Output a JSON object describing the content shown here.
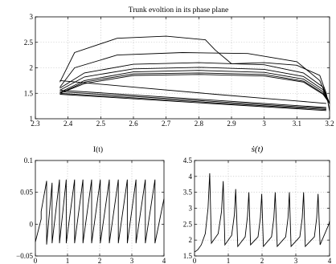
{
  "chart_data": [
    {
      "type": "line",
      "title": "Trunk evoltion in its phase plane",
      "xlabel": "",
      "ylabel": "",
      "xlim": [
        2.3,
        3.2
      ],
      "ylim": [
        1,
        3
      ],
      "xticks": [
        "2.3",
        "2.4",
        "2.5",
        "2.6",
        "2.7",
        "2.8",
        "2.9",
        "3",
        "3.1",
        "3.2"
      ],
      "yticks": [
        "1",
        "1.5",
        "2",
        "2.5",
        "3"
      ],
      "grid": true,
      "series": [
        {
          "x": [
            2.375,
            2.42,
            2.55,
            2.7,
            2.82,
            2.85,
            2.9,
            3.0,
            3.1,
            3.17,
            3.19,
            3.2
          ],
          "y": [
            1.72,
            2.3,
            2.58,
            2.62,
            2.55,
            2.35,
            2.08,
            2.1,
            2.05,
            1.85,
            1.5,
            1.15
          ]
        },
        {
          "x": [
            2.375,
            2.42,
            2.55,
            2.75,
            2.95,
            3.1,
            3.17,
            3.2
          ],
          "y": [
            1.62,
            2.0,
            2.25,
            2.3,
            2.28,
            2.12,
            1.75,
            1.3
          ]
        },
        {
          "x": [
            2.375,
            2.45,
            2.6,
            2.8,
            3.0,
            3.12,
            3.18,
            3.2
          ],
          "y": [
            1.6,
            1.9,
            2.07,
            2.1,
            2.06,
            1.9,
            1.62,
            1.3
          ]
        },
        {
          "x": [
            2.375,
            2.45,
            2.6,
            2.8,
            3.0,
            3.12,
            3.18,
            3.2
          ],
          "y": [
            1.56,
            1.82,
            1.98,
            2.01,
            1.97,
            1.83,
            1.57,
            1.3
          ]
        },
        {
          "x": [
            2.375,
            2.45,
            2.6,
            2.8,
            3.0,
            3.12,
            3.18,
            3.2
          ],
          "y": [
            1.52,
            1.75,
            1.92,
            1.95,
            1.91,
            1.78,
            1.53,
            1.3
          ]
        },
        {
          "x": [
            2.375,
            2.45,
            2.6,
            2.8,
            3.0,
            3.12,
            3.18,
            3.2
          ],
          "y": [
            1.5,
            1.72,
            1.88,
            1.9,
            1.87,
            1.74,
            1.5,
            1.3
          ]
        },
        {
          "x": [
            2.375,
            2.45,
            2.6,
            2.8,
            3.0,
            3.12,
            3.18,
            3.2
          ],
          "y": [
            1.5,
            1.69,
            1.85,
            1.87,
            1.84,
            1.72,
            1.48,
            1.3
          ]
        },
        {
          "x": [
            2.375,
            2.6,
            2.85,
            3.0,
            3.1,
            3.19
          ],
          "y": [
            1.75,
            1.62,
            1.48,
            1.4,
            1.35,
            1.3
          ]
        },
        {
          "x": [
            2.375,
            3.19
          ],
          "y": [
            1.56,
            1.22
          ]
        },
        {
          "x": [
            2.375,
            3.19
          ],
          "y": [
            1.53,
            1.2
          ]
        },
        {
          "x": [
            2.375,
            3.19
          ],
          "y": [
            1.5,
            1.18
          ]
        },
        {
          "x": [
            2.375,
            3.19
          ],
          "y": [
            1.48,
            1.16
          ]
        }
      ]
    },
    {
      "type": "line",
      "title": "I(t)",
      "xlabel": "",
      "ylabel": "",
      "xlim": [
        0,
        4
      ],
      "ylim": [
        -0.05,
        0.1
      ],
      "xticks": [
        "0",
        "1",
        "2",
        "3",
        "4"
      ],
      "yticks": [
        "−0.05",
        "0",
        "0.05",
        "0.1"
      ],
      "grid": true,
      "series": [
        {
          "x": [
            0,
            0.18,
            0.18,
            0.35,
            0.35,
            0.52,
            0.52,
            0.75,
            0.75,
            0.96,
            0.96,
            1.22,
            1.22,
            1.48,
            1.48,
            1.75,
            1.75,
            2.02,
            2.02,
            2.3,
            2.3,
            2.58,
            2.58,
            2.86,
            2.86,
            3.13,
            3.13,
            3.42,
            3.42,
            3.72,
            3.72,
            4.0
          ],
          "y": [
            -0.028,
            0.008,
            0.02,
            0.068,
            -0.032,
            0.065,
            -0.03,
            0.07,
            -0.03,
            0.07,
            -0.03,
            0.07,
            -0.03,
            0.07,
            -0.03,
            0.07,
            -0.03,
            0.07,
            -0.03,
            0.07,
            -0.03,
            0.07,
            -0.03,
            0.07,
            -0.03,
            0.07,
            -0.03,
            0.07,
            -0.03,
            0.07,
            -0.03,
            0.04
          ]
        }
      ]
    },
    {
      "type": "line",
      "title": "ṡ(t)",
      "xlabel": "",
      "ylabel": "",
      "xlim": [
        0,
        4
      ],
      "ylim": [
        1.5,
        4.5
      ],
      "xticks": [
        "0",
        "1",
        "2",
        "3",
        "4"
      ],
      "yticks": [
        "1.5",
        "2",
        "2.5",
        "3",
        "3.5",
        "4",
        "4.5"
      ],
      "grid": true,
      "series": [
        {
          "x": [
            0,
            0.1,
            0.2,
            0.32,
            0.4,
            0.45,
            0.5,
            0.7,
            0.8,
            0.85,
            0.9,
            1.1,
            1.18,
            1.22,
            1.28,
            1.5,
            1.57,
            1.61,
            1.66,
            1.88,
            1.95,
            1.99,
            2.04,
            2.28,
            2.35,
            2.39,
            2.45,
            2.7,
            2.77,
            2.81,
            2.86,
            3.12,
            3.19,
            3.23,
            3.28,
            3.55,
            3.62,
            3.66,
            3.72,
            3.98,
            4.0
          ],
          "y": [
            1.62,
            1.7,
            1.85,
            2.2,
            3.0,
            4.1,
            1.9,
            2.2,
            2.9,
            3.85,
            1.85,
            2.15,
            2.8,
            3.6,
            1.8,
            2.1,
            2.75,
            3.5,
            1.85,
            2.1,
            2.7,
            3.45,
            1.8,
            2.1,
            2.7,
            3.5,
            1.8,
            2.1,
            2.7,
            3.5,
            1.8,
            2.1,
            2.7,
            3.5,
            1.8,
            2.1,
            2.7,
            3.45,
            1.85,
            2.5,
            2.6
          ]
        }
      ]
    }
  ]
}
